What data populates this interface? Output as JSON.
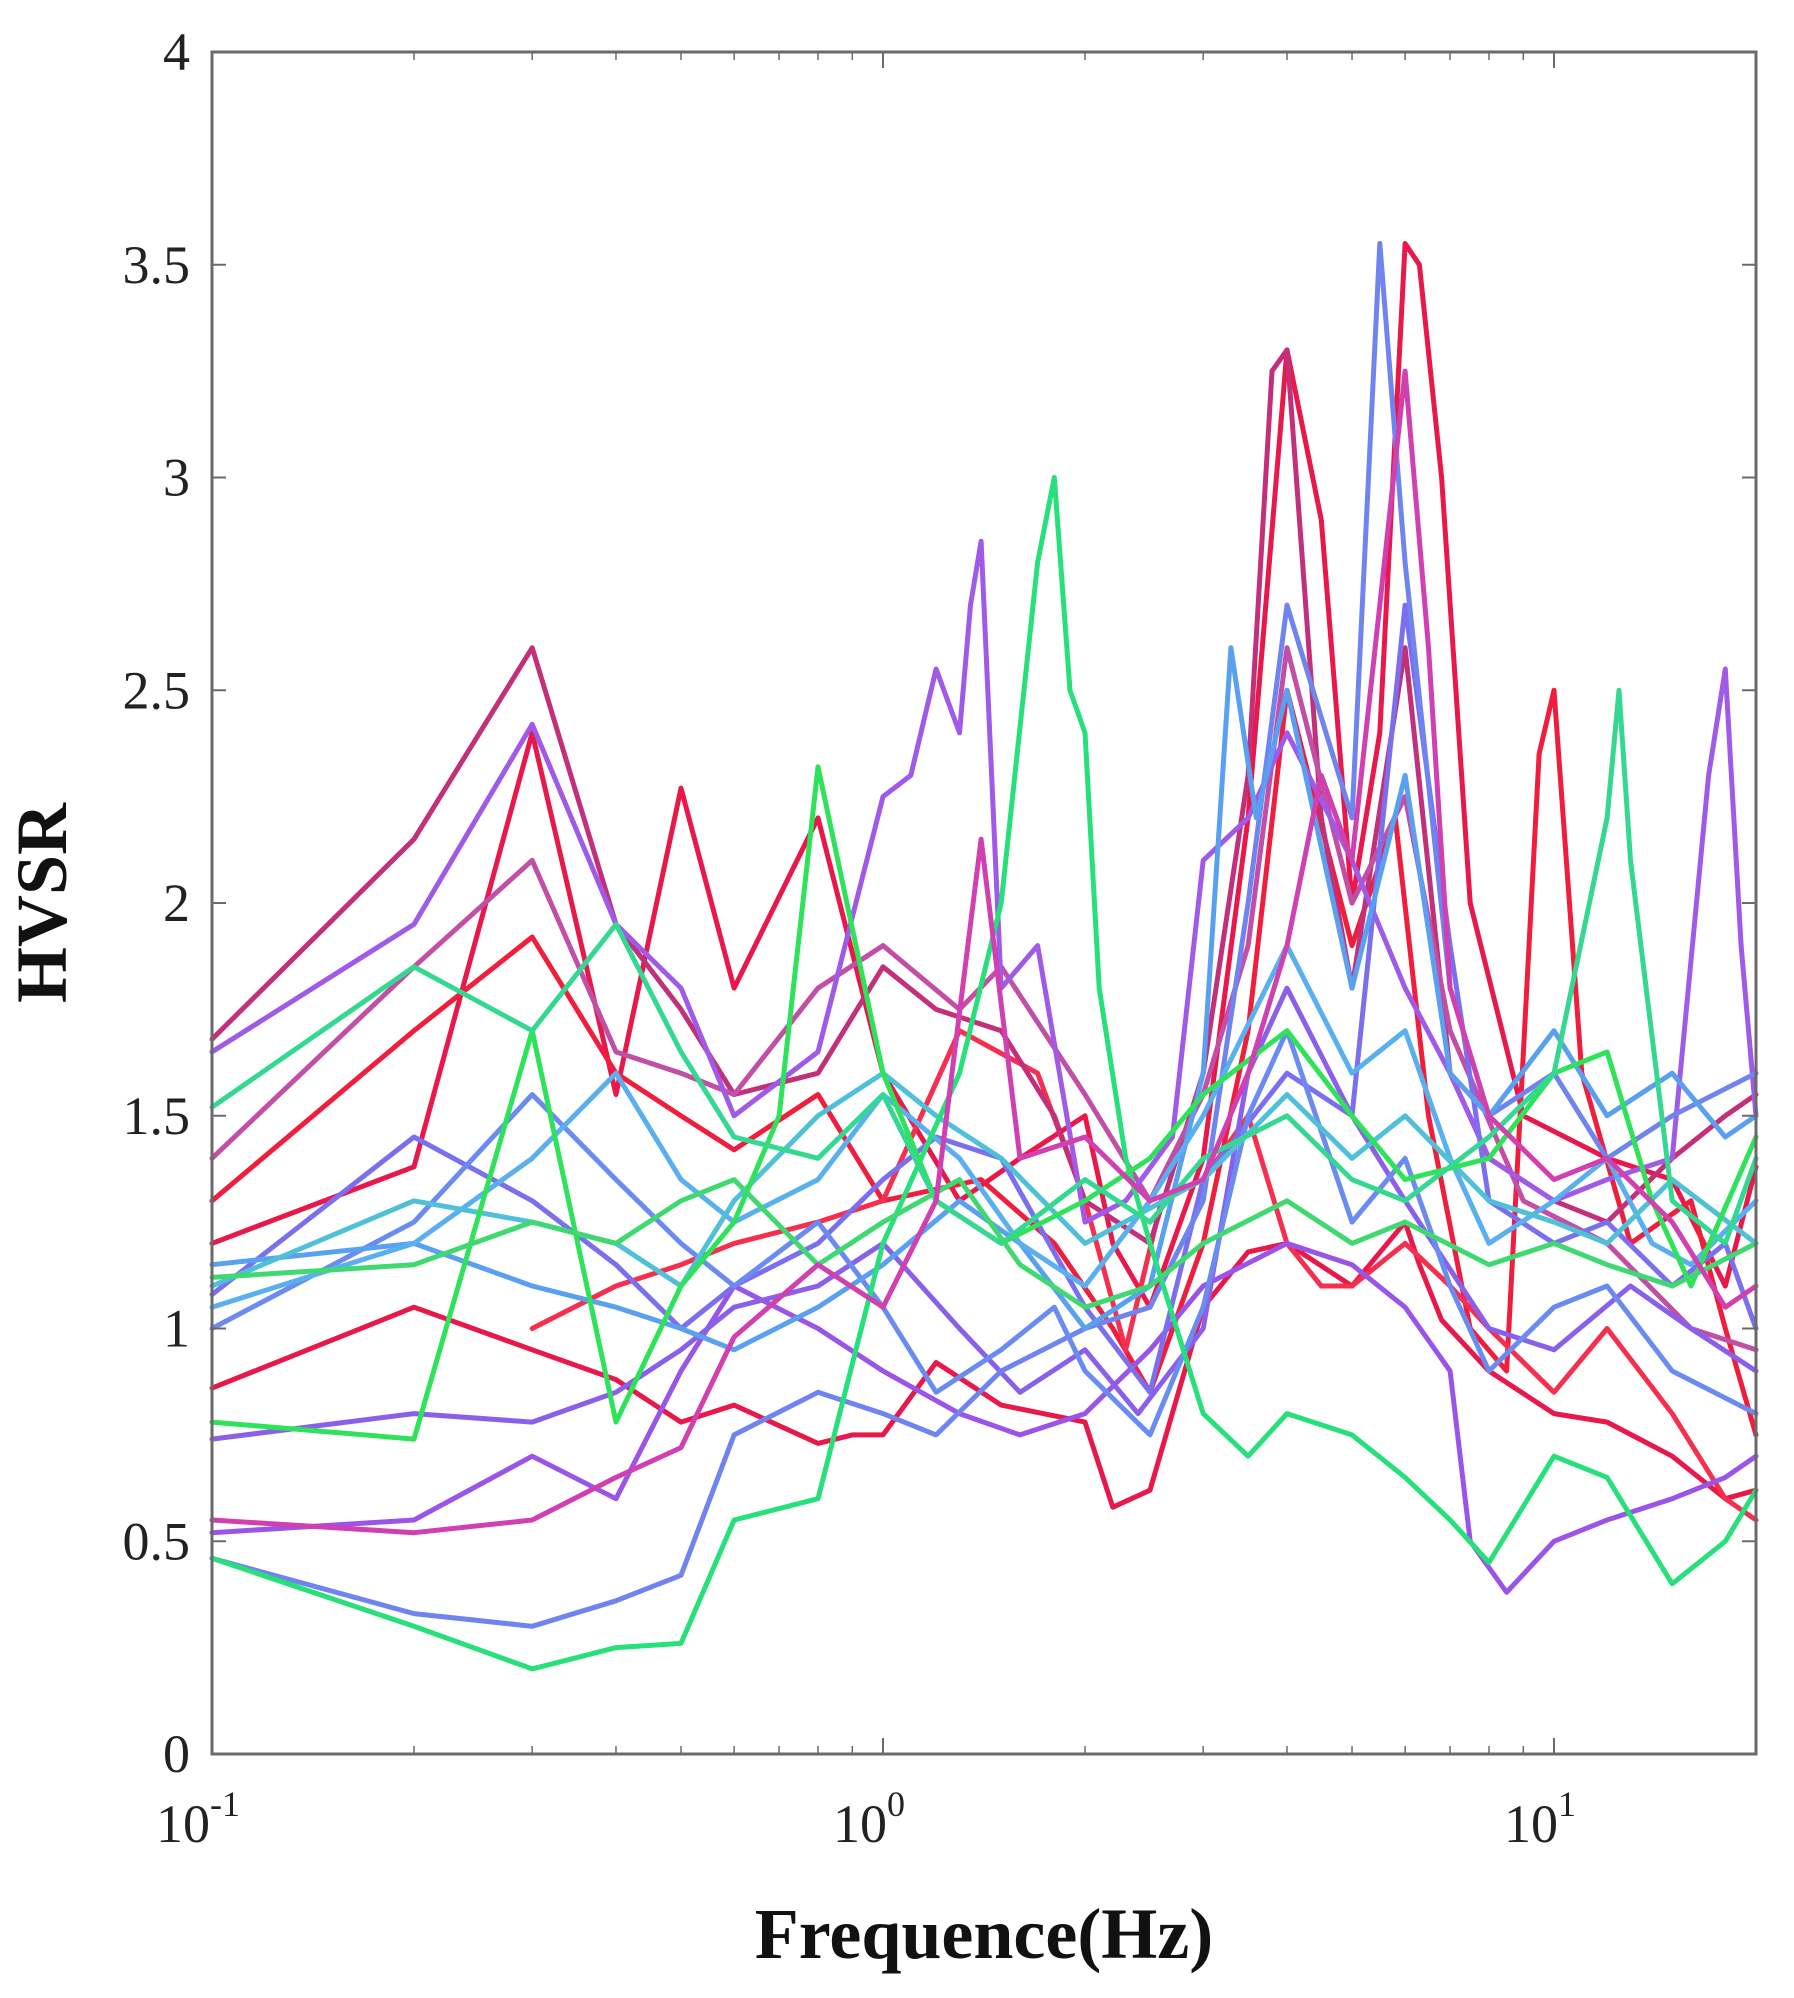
{
  "chart_data": {
    "type": "line",
    "title": "",
    "xlabel": "Frequence(Hz)",
    "ylabel": "HVSR",
    "x_scale": "log",
    "xlim": [
      0.1,
      20
    ],
    "ylim": [
      0,
      4
    ],
    "grid": false,
    "legend": "none",
    "x_ticks": [
      {
        "value": 0.1,
        "base": "10",
        "exp": "-1"
      },
      {
        "value": 1,
        "base": "10",
        "exp": "0"
      },
      {
        "value": 10,
        "base": "10",
        "exp": "1"
      }
    ],
    "y_ticks": [
      {
        "value": 0,
        "label": "0"
      },
      {
        "value": 0.5,
        "label": "0.5"
      },
      {
        "value": 1,
        "label": "1"
      },
      {
        "value": 1.5,
        "label": "1.5"
      },
      {
        "value": 2,
        "label": "2"
      },
      {
        "value": 2.5,
        "label": "2.5"
      },
      {
        "value": 3,
        "label": "3"
      },
      {
        "value": 3.5,
        "label": "3.5"
      },
      {
        "value": 4,
        "label": "4"
      }
    ],
    "series": [
      {
        "color": "#e8194a",
        "x": [
          0.1,
          0.2,
          0.3,
          0.4,
          0.5,
          0.6,
          0.8,
          0.9,
          1.0,
          1.2,
          1.5,
          2.0,
          2.2,
          2.5,
          3.0,
          3.5,
          4.0,
          5.0,
          6.0,
          6.3,
          6.8,
          8.0,
          10.0,
          12.0,
          15.0,
          18.0,
          20.0
        ],
        "y": [
          0.86,
          1.05,
          0.95,
          0.88,
          0.78,
          0.82,
          0.73,
          0.75,
          0.75,
          0.92,
          0.82,
          0.78,
          0.58,
          0.62,
          1.05,
          1.18,
          1.2,
          1.1,
          1.25,
          1.15,
          1.02,
          0.9,
          0.8,
          0.78,
          0.7,
          0.6,
          0.62
        ]
      },
      {
        "color": "#e8194a",
        "x": [
          0.1,
          0.2,
          0.3,
          0.4,
          0.5,
          0.6,
          0.8,
          1.0,
          1.3,
          1.6,
          2.0,
          2.2,
          2.5,
          3.0,
          3.5,
          4.0,
          4.5,
          5.0,
          5.5,
          6.0,
          6.3,
          6.8,
          7.5,
          9.0,
          12.0,
          15.0,
          18.0,
          20.0
        ],
        "y": [
          1.2,
          1.38,
          2.4,
          1.55,
          2.27,
          1.8,
          2.2,
          1.6,
          1.3,
          1.4,
          1.5,
          1.2,
          1.05,
          1.4,
          2.2,
          3.3,
          2.9,
          2.0,
          2.4,
          3.55,
          3.5,
          3.0,
          2.0,
          1.5,
          1.4,
          1.35,
          1.1,
          1.38
        ]
      },
      {
        "color": "#f01e3c",
        "x": [
          0.1,
          0.2,
          0.3,
          0.4,
          0.5,
          0.6,
          0.8,
          1.0,
          1.4,
          1.8,
          2.2,
          2.5,
          3.0,
          3.5,
          4.0,
          5.0,
          5.8,
          6.5,
          7.5,
          8.5,
          9.5,
          10.0,
          11.0,
          13.0,
          16.0,
          18.0,
          20.0
        ],
        "y": [
          1.3,
          1.7,
          1.92,
          1.6,
          1.5,
          1.42,
          1.55,
          1.3,
          1.35,
          1.2,
          1.0,
          0.85,
          1.2,
          1.7,
          2.5,
          1.9,
          2.2,
          1.5,
          1.0,
          0.9,
          2.35,
          2.5,
          1.6,
          1.2,
          1.3,
          1.0,
          0.75
        ]
      },
      {
        "color": "#f5304e",
        "x": [
          0.3,
          0.4,
          0.5,
          0.6,
          0.8,
          1.0,
          1.3,
          1.7,
          2.0,
          2.3,
          2.6,
          3.0,
          3.5,
          4.0,
          4.5,
          5.0,
          6.0,
          7.0,
          8.0,
          10.0,
          12.0,
          15.0,
          18.0,
          20.0
        ],
        "y": [
          1.0,
          1.1,
          1.15,
          1.2,
          1.25,
          1.3,
          1.7,
          1.6,
          1.3,
          0.95,
          1.3,
          1.35,
          1.5,
          1.2,
          1.1,
          1.1,
          1.2,
          1.1,
          1.0,
          0.85,
          1.0,
          0.8,
          0.6,
          0.55
        ]
      },
      {
        "color": "#c2307a",
        "x": [
          0.1,
          0.2,
          0.3,
          0.4,
          0.5,
          0.6,
          0.8,
          1.0,
          1.2,
          1.5,
          1.8,
          2.0,
          2.5,
          3.0,
          3.5,
          3.8,
          4.0,
          4.5,
          5.0,
          6.0,
          7.0,
          8.0,
          10.0,
          12.0,
          15.0,
          18.0,
          20.0
        ],
        "y": [
          1.68,
          2.15,
          2.6,
          1.95,
          1.75,
          1.55,
          1.6,
          1.85,
          1.75,
          1.7,
          1.5,
          1.3,
          1.2,
          1.6,
          2.3,
          3.25,
          3.3,
          2.2,
          1.8,
          2.6,
          1.6,
          1.4,
          1.3,
          1.25,
          1.4,
          1.5,
          1.55
        ]
      },
      {
        "color": "#c24fa6",
        "x": [
          0.1,
          0.2,
          0.3,
          0.4,
          0.5,
          0.6,
          0.8,
          1.0,
          1.3,
          1.5,
          2.0,
          2.5,
          3.0,
          3.5,
          4.0,
          5.0,
          6.0,
          7.0,
          9.0,
          12.0,
          16.0,
          20.0
        ],
        "y": [
          1.4,
          1.85,
          2.1,
          1.65,
          1.6,
          1.55,
          1.8,
          1.9,
          1.75,
          1.85,
          1.55,
          1.3,
          1.55,
          1.9,
          2.6,
          2.0,
          2.25,
          1.7,
          1.3,
          1.2,
          1.0,
          0.95
        ]
      },
      {
        "color": "#a05ae8",
        "x": [
          0.1,
          0.2,
          0.3,
          0.4,
          0.5,
          0.6,
          0.8,
          1.0,
          1.1,
          1.2,
          1.3,
          1.35,
          1.4,
          1.5,
          1.7,
          2.0,
          2.3,
          2.7,
          3.0,
          3.5,
          4.0,
          5.0,
          6.0,
          7.0,
          8.0,
          10.0,
          12.0,
          15.0,
          17.0,
          18.0,
          19.0,
          20.0
        ],
        "y": [
          1.65,
          1.95,
          2.42,
          1.95,
          1.8,
          1.5,
          1.65,
          2.25,
          2.3,
          2.55,
          2.4,
          2.7,
          2.85,
          1.8,
          1.9,
          1.25,
          1.3,
          1.45,
          2.1,
          2.2,
          2.4,
          2.1,
          1.8,
          1.6,
          1.4,
          1.3,
          1.35,
          1.4,
          2.3,
          2.55,
          1.9,
          1.5
        ]
      },
      {
        "color": "#9a55e8",
        "x": [
          0.1,
          0.2,
          0.3,
          0.4,
          0.5,
          0.6,
          0.8,
          1.0,
          1.3,
          1.6,
          2.0,
          2.5,
          3.0,
          4.0,
          5.0,
          6.0,
          7.0,
          7.5,
          8.5,
          10.0,
          12.0,
          15.0,
          18.0,
          20.0
        ],
        "y": [
          0.52,
          0.55,
          0.7,
          0.6,
          0.9,
          1.1,
          1.0,
          0.9,
          0.8,
          0.75,
          0.8,
          0.95,
          1.1,
          1.2,
          1.15,
          1.05,
          0.9,
          0.5,
          0.38,
          0.5,
          0.55,
          0.6,
          0.65,
          0.7
        ]
      },
      {
        "color": "#8a60ea",
        "x": [
          0.1,
          0.2,
          0.3,
          0.4,
          0.5,
          0.6,
          0.8,
          1.0,
          1.3,
          1.6,
          2.0,
          2.4,
          3.0,
          3.5,
          4.0,
          5.0,
          6.0,
          8.0,
          10.0,
          13.0,
          16.0,
          20.0
        ],
        "y": [
          0.74,
          0.8,
          0.78,
          0.85,
          0.95,
          1.05,
          1.1,
          1.2,
          1.0,
          0.85,
          0.95,
          0.8,
          1.0,
          1.6,
          1.8,
          1.5,
          1.3,
          1.0,
          0.95,
          1.1,
          1.0,
          0.9
        ]
      },
      {
        "color": "#7a70ee",
        "x": [
          0.1,
          0.2,
          0.3,
          0.4,
          0.5,
          0.6,
          0.8,
          1.0,
          1.2,
          1.5,
          2.0,
          2.5,
          3.0,
          4.0,
          5.0,
          6.0,
          7.0,
          8.0,
          10.0,
          12.0,
          15.0,
          18.0,
          20.0
        ],
        "y": [
          1.08,
          1.45,
          1.3,
          1.15,
          1.0,
          1.1,
          1.2,
          1.35,
          1.45,
          1.4,
          1.05,
          0.85,
          1.35,
          1.6,
          1.5,
          2.7,
          1.9,
          1.3,
          1.2,
          1.25,
          1.1,
          1.2,
          1.0
        ]
      },
      {
        "color": "#6f84ee",
        "x": [
          0.1,
          0.2,
          0.3,
          0.4,
          0.5,
          0.6,
          0.8,
          1.0,
          1.2,
          1.5,
          2.0,
          2.5,
          3.0,
          3.5,
          4.0,
          5.0,
          5.5,
          6.0,
          7.0,
          8.0,
          10.0,
          12.0,
          15.0,
          20.0
        ],
        "y": [
          0.46,
          0.33,
          0.3,
          0.36,
          0.42,
          0.75,
          0.85,
          0.8,
          0.75,
          0.9,
          1.0,
          1.05,
          1.3,
          2.0,
          2.7,
          2.2,
          3.55,
          2.8,
          1.8,
          1.5,
          1.6,
          1.4,
          1.5,
          1.6
        ]
      },
      {
        "color": "#6a8cf0",
        "x": [
          0.1,
          0.2,
          0.3,
          0.4,
          0.5,
          0.6,
          0.8,
          1.0,
          1.2,
          1.5,
          1.8,
          2.0,
          2.5,
          3.0,
          3.5,
          4.0,
          5.0,
          6.0,
          7.0,
          8.0,
          10.0,
          12.0,
          15.0,
          20.0
        ],
        "y": [
          1.0,
          1.25,
          1.55,
          1.35,
          1.2,
          1.1,
          1.25,
          1.05,
          0.85,
          0.95,
          1.05,
          0.9,
          0.75,
          1.05,
          1.5,
          1.7,
          1.25,
          1.4,
          1.1,
          0.9,
          1.05,
          1.1,
          0.9,
          0.8
        ]
      },
      {
        "color": "#5aa0f0",
        "x": [
          0.1,
          0.2,
          0.3,
          0.4,
          0.5,
          0.6,
          0.8,
          1.0,
          1.3,
          1.6,
          2.0,
          2.5,
          3.0,
          3.3,
          3.6,
          4.0,
          5.0,
          6.0,
          7.0,
          8.0,
          10.0,
          12.0,
          15.0,
          18.0,
          20.0
        ],
        "y": [
          1.15,
          1.2,
          1.1,
          1.05,
          1.0,
          0.95,
          1.05,
          1.15,
          1.3,
          1.2,
          1.0,
          1.1,
          1.6,
          2.6,
          2.2,
          2.5,
          1.8,
          2.3,
          1.6,
          1.5,
          1.7,
          1.5,
          1.6,
          1.45,
          1.5
        ]
      },
      {
        "color": "#5ab0ee",
        "x": [
          0.1,
          0.2,
          0.3,
          0.4,
          0.5,
          0.6,
          0.8,
          1.0,
          1.3,
          1.6,
          2.0,
          2.5,
          3.0,
          4.0,
          5.0,
          6.0,
          7.0,
          8.0,
          10.0,
          12.0,
          14.0,
          16.0,
          20.0
        ],
        "y": [
          1.05,
          1.2,
          1.4,
          1.6,
          1.35,
          1.25,
          1.35,
          1.55,
          1.4,
          1.2,
          1.1,
          1.3,
          1.5,
          1.9,
          1.6,
          1.7,
          1.4,
          1.2,
          1.3,
          1.4,
          1.2,
          1.15,
          1.3
        ]
      },
      {
        "color": "#4fc0d8",
        "x": [
          0.1,
          0.2,
          0.3,
          0.4,
          0.5,
          0.6,
          0.8,
          1.0,
          1.2,
          1.5,
          2.0,
          3.0,
          4.0,
          5.0,
          6.0,
          8.0,
          10.0,
          12.0,
          15.0,
          20.0
        ],
        "y": [
          1.1,
          1.3,
          1.25,
          1.2,
          1.1,
          1.3,
          1.5,
          1.6,
          1.5,
          1.4,
          1.2,
          1.35,
          1.55,
          1.4,
          1.5,
          1.3,
          1.25,
          1.2,
          1.35,
          1.2
        ]
      },
      {
        "color": "#27e07a",
        "x": [
          0.1,
          0.2,
          0.3,
          0.4,
          0.5,
          0.6,
          0.8,
          1.0,
          1.3,
          1.5,
          1.7,
          1.8,
          1.9,
          2.0,
          2.1,
          2.3,
          2.5,
          3.0,
          3.5,
          4.0,
          5.0,
          6.0,
          7.0,
          8.0,
          10.0,
          12.0,
          15.0,
          18.0,
          20.0
        ],
        "y": [
          0.46,
          0.3,
          0.2,
          0.25,
          0.26,
          0.55,
          0.6,
          1.2,
          1.6,
          2.0,
          2.8,
          3.0,
          2.5,
          2.4,
          1.8,
          1.4,
          1.2,
          0.8,
          0.7,
          0.8,
          0.75,
          0.65,
          0.55,
          0.45,
          0.7,
          0.65,
          0.4,
          0.5,
          0.62
        ]
      },
      {
        "color": "#2ee35a",
        "x": [
          0.1,
          0.2,
          0.3,
          0.4,
          0.5,
          0.6,
          0.7,
          0.8,
          1.0,
          1.2,
          1.5,
          2.0,
          2.5,
          3.0,
          4.0,
          5.0,
          6.0,
          8.0,
          10.0,
          12.0,
          14.0,
          16.0,
          20.0
        ],
        "y": [
          0.78,
          0.74,
          1.7,
          0.78,
          1.1,
          1.25,
          1.5,
          2.32,
          1.6,
          1.3,
          1.2,
          1.3,
          1.4,
          1.55,
          1.7,
          1.5,
          1.35,
          1.4,
          1.6,
          1.65,
          1.3,
          1.1,
          1.45
        ]
      },
      {
        "color": "#35d890",
        "x": [
          0.1,
          0.2,
          0.3,
          0.4,
          0.5,
          0.6,
          0.8,
          1.0,
          1.2,
          1.5,
          2.0,
          2.5,
          3.0,
          4.0,
          5.0,
          6.0,
          8.0,
          10.0,
          12.0,
          12.5,
          13.0,
          15.0,
          18.0,
          20.0
        ],
        "y": [
          1.52,
          1.85,
          1.7,
          1.95,
          1.65,
          1.45,
          1.4,
          1.55,
          1.3,
          1.2,
          1.35,
          1.25,
          1.4,
          1.5,
          1.35,
          1.3,
          1.45,
          1.6,
          2.2,
          2.5,
          2.1,
          1.3,
          1.2,
          1.4
        ]
      },
      {
        "color": "#40d870",
        "x": [
          0.1,
          0.2,
          0.3,
          0.4,
          0.5,
          0.6,
          0.8,
          1.0,
          1.3,
          1.6,
          2.0,
          2.5,
          3.0,
          4.0,
          5.0,
          6.0,
          8.0,
          10.0,
          12.0,
          15.0,
          20.0
        ],
        "y": [
          1.12,
          1.15,
          1.25,
          1.2,
          1.3,
          1.35,
          1.15,
          1.25,
          1.35,
          1.15,
          1.05,
          1.1,
          1.2,
          1.3,
          1.2,
          1.25,
          1.15,
          1.2,
          1.15,
          1.1,
          1.2
        ]
      },
      {
        "color": "#d040b0",
        "x": [
          0.1,
          0.2,
          0.3,
          0.4,
          0.5,
          0.6,
          0.8,
          1.0,
          1.2,
          1.4,
          1.6,
          2.0,
          2.5,
          3.0,
          3.5,
          4.0,
          4.5,
          5.0,
          5.5,
          6.0,
          6.5,
          7.0,
          8.0,
          10.0,
          12.0,
          15.0,
          18.0,
          20.0
        ],
        "y": [
          0.55,
          0.52,
          0.55,
          0.65,
          0.72,
          0.98,
          1.15,
          1.05,
          1.3,
          2.15,
          1.4,
          1.45,
          1.3,
          1.35,
          1.6,
          1.9,
          2.3,
          2.1,
          2.7,
          3.25,
          2.6,
          1.8,
          1.5,
          1.35,
          1.4,
          1.25,
          1.05,
          1.1
        ]
      }
    ]
  }
}
